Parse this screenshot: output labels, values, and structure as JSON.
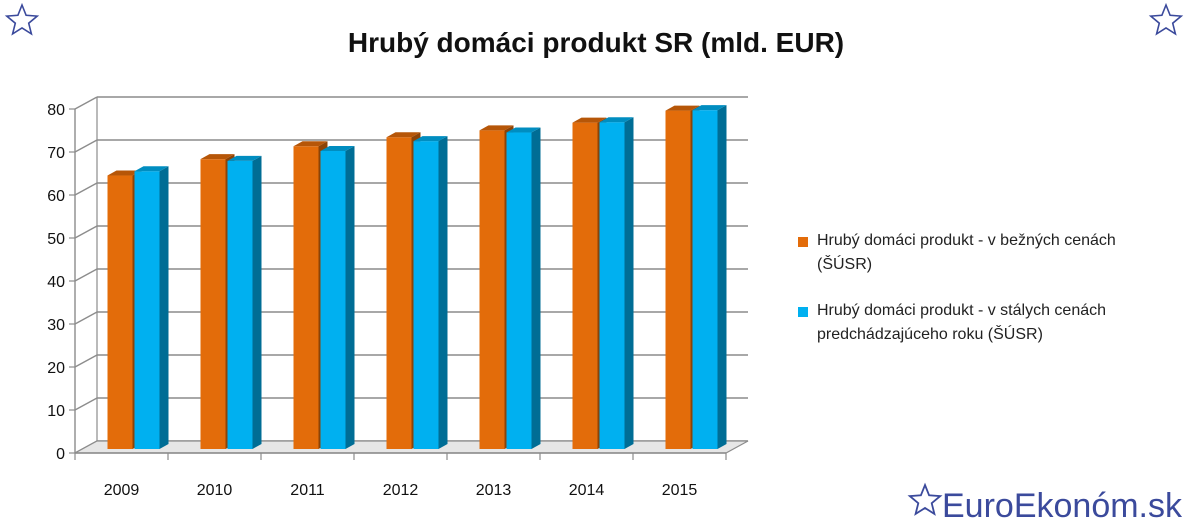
{
  "brand": {
    "text": "EuroEkonóm.sk"
  },
  "chart_data": {
    "type": "bar",
    "title": "Hrubý domáci produkt SR (mld. EUR)",
    "xlabel": "",
    "ylabel": "",
    "categories": [
      "2009",
      "2010",
      "2011",
      "2012",
      "2013",
      "2014",
      "2015"
    ],
    "y_ticks": [
      "0",
      "10",
      "20",
      "30",
      "40",
      "50",
      "60",
      "70",
      "80"
    ],
    "ylim": [
      0,
      80
    ],
    "grid": true,
    "legend_position": "right",
    "series": [
      {
        "name": "Hrubý domáci produkt - v bežných cenách (ŠÚSR)",
        "legend_lines": [
          "Hrubý domáci produkt - v bežných cenách",
          "(ŠÚSR)"
        ],
        "color": "#e36c0a",
        "values": [
          63.6,
          67.4,
          70.4,
          72.5,
          74.1,
          75.9,
          78.7
        ]
      },
      {
        "name": "Hrubý domáci produkt - v stálych cenách predchádzajúceho roku (ŠÚSR)",
        "legend_lines": [
          "Hrubý domáci produkt - v stálych cenách",
          "predchádzajúceho roku (ŠÚSR)"
        ],
        "color": "#00b0f0",
        "values": [
          64.6,
          67.0,
          69.3,
          71.6,
          73.6,
          76.0,
          78.8
        ]
      }
    ]
  }
}
